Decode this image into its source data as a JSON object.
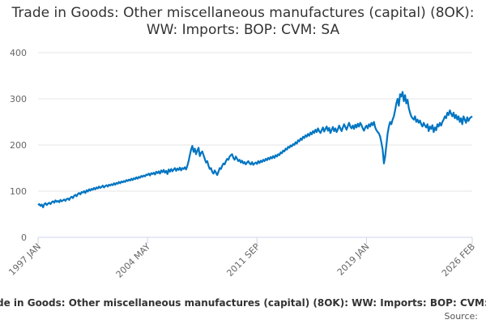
{
  "chart_data": {
    "type": "line",
    "title": "Trade in Goods: Other miscellaneous manufactures (capital) (8OK): WW: Imports: BOP: CVM: SA",
    "source": "Source:",
    "categories": [
      "1997 JAN",
      null,
      null,
      null,
      null,
      null,
      null,
      null,
      null,
      null,
      null,
      null,
      null,
      null,
      null,
      null,
      null,
      null,
      null,
      null,
      null,
      null,
      null,
      null,
      null,
      null,
      null,
      null,
      null,
      null,
      null,
      null,
      null,
      null,
      null,
      null,
      null,
      null,
      null,
      null,
      null,
      null,
      null,
      null,
      null,
      null,
      null,
      null,
      null,
      null,
      null,
      null,
      null,
      null,
      null,
      null,
      null,
      null,
      null,
      null,
      null,
      null,
      null,
      null,
      null,
      null,
      null,
      null,
      null,
      null,
      null,
      null,
      null,
      null,
      null,
      null,
      null,
      null,
      null,
      null,
      null,
      null,
      null,
      null,
      null,
      null,
      null,
      null,
      "2004 MAY",
      null,
      null,
      null,
      null,
      null,
      null,
      null,
      null,
      null,
      null,
      null,
      null,
      null,
      null,
      null,
      null,
      null,
      null,
      null,
      null,
      null,
      null,
      null,
      null,
      null,
      null,
      null,
      null,
      null,
      null,
      null,
      null,
      null,
      null,
      null,
      null,
      null,
      null,
      null,
      null,
      null,
      null,
      null,
      null,
      null,
      null,
      null,
      null,
      null,
      null,
      null,
      null,
      null,
      null,
      null,
      null,
      null,
      null,
      null,
      null,
      null,
      null,
      null,
      null,
      null,
      null,
      null,
      null,
      null,
      null,
      null,
      null,
      null,
      null,
      null,
      null,
      null,
      null,
      null,
      null,
      null,
      null,
      null,
      null,
      null,
      null,
      null,
      "2011 SEP",
      null,
      null,
      null,
      null,
      null,
      null,
      null,
      null,
      null,
      null,
      null,
      null,
      null,
      null,
      null,
      null,
      null,
      null,
      null,
      null,
      null,
      null,
      null,
      null,
      null,
      null,
      null,
      null,
      null,
      null,
      null,
      null,
      null,
      null,
      null,
      null,
      null,
      null,
      null,
      null,
      null,
      null,
      null,
      null,
      null,
      null,
      null,
      null,
      null,
      null,
      null,
      null,
      null,
      null,
      null,
      null,
      null,
      null,
      null,
      null,
      null,
      null,
      null,
      null,
      null,
      null,
      null,
      null,
      null,
      null,
      null,
      null,
      null,
      null,
      null,
      null,
      null,
      null,
      null,
      null,
      null,
      null,
      null,
      null,
      null,
      null,
      null,
      "2019 JAN",
      null,
      null,
      null,
      null,
      null,
      null,
      null,
      null,
      null,
      null,
      null,
      null,
      null,
      null,
      null,
      null,
      null,
      null,
      null,
      null,
      null,
      null,
      null,
      null,
      null,
      null,
      null,
      null,
      null,
      null,
      null,
      null,
      null,
      null,
      null,
      null,
      null,
      null,
      null,
      null,
      null,
      null,
      null,
      null,
      null,
      null,
      null,
      null,
      null,
      null,
      null,
      null,
      null,
      null,
      null,
      null,
      null,
      null,
      null,
      null,
      null,
      null,
      null,
      null,
      null,
      null,
      null,
      null,
      null,
      null,
      null,
      null,
      null,
      null,
      null,
      null,
      null,
      null,
      null,
      null,
      null,
      null,
      null,
      null,
      "2026 FEB"
    ],
    "series": [
      {
        "name": "Trade in Goods: Other miscellaneous manufactures (capital) (8OK): WW: Imports: BOP: CVM: SA",
        "color": "#0075c2",
        "values": [
          70,
          72,
          68,
          71,
          65,
          72,
          74,
          70,
          73,
          75,
          72,
          76,
          78,
          75,
          80,
          77,
          79,
          76,
          81,
          78,
          80,
          82,
          79,
          83,
          84,
          81,
          86,
          88,
          85,
          90,
          92,
          89,
          94,
          96,
          93,
          98,
          97,
          100,
          96,
          102,
          99,
          104,
          101,
          105,
          103,
          107,
          104,
          108,
          106,
          110,
          107,
          109,
          112,
          108,
          111,
          113,
          110,
          114,
          112,
          115,
          113,
          117,
          114,
          118,
          116,
          120,
          117,
          121,
          119,
          122,
          120,
          124,
          122,
          125,
          123,
          127,
          124,
          128,
          126,
          130,
          127,
          131,
          129,
          133,
          131,
          134,
          132,
          136,
          135,
          138,
          134,
          139,
          137,
          140,
          136,
          142,
          139,
          143,
          138,
          145,
          141,
          146,
          140,
          144,
          137,
          147,
          142,
          148,
          143,
          147,
          150,
          144,
          149,
          146,
          151,
          145,
          150,
          148,
          152,
          147,
          155,
          165,
          178,
          190,
          198,
          185,
          192,
          180,
          188,
          194,
          176,
          183,
          186,
          178,
          170,
          162,
          165,
          155,
          148,
          150,
          142,
          138,
          145,
          140,
          135,
          142,
          150,
          148,
          155,
          160,
          158,
          165,
          170,
          168,
          175,
          178,
          180,
          172,
          168,
          175,
          170,
          165,
          168,
          162,
          166,
          160,
          163,
          158,
          162,
          165,
          160,
          158,
          163,
          157,
          160,
          162,
          159,
          165,
          161,
          166,
          163,
          168,
          165,
          170,
          167,
          172,
          169,
          174,
          171,
          176,
          172,
          178,
          175,
          180,
          178,
          184,
          182,
          188,
          186,
          192,
          190,
          196,
          194,
          199,
          197,
          202,
          200,
          206,
          203,
          210,
          208,
          214,
          211,
          218,
          215,
          221,
          218,
          224,
          220,
          227,
          223,
          230,
          226,
          233,
          228,
          236,
          230,
          226,
          232,
          238,
          229,
          235,
          240,
          231,
          237,
          226,
          233,
          239,
          230,
          236,
          228,
          234,
          242,
          236,
          230,
          238,
          245,
          239,
          233,
          241,
          248,
          240,
          236,
          242,
          235,
          244,
          238,
          246,
          240,
          248,
          243,
          236,
          231,
          238,
          242,
          236,
          245,
          240,
          248,
          243,
          250,
          238,
          232,
          228,
          225,
          218,
          205,
          190,
          160,
          175,
          200,
          225,
          240,
          250,
          245,
          255,
          262,
          275,
          290,
          300,
          285,
          310,
          305,
          315,
          295,
          308,
          290,
          298,
          280,
          270,
          262,
          258,
          255,
          262,
          250,
          255,
          248,
          253,
          245,
          240,
          248,
          242,
          238,
          245,
          230,
          240,
          235,
          243,
          228,
          238,
          232,
          245,
          240,
          248,
          242,
          250,
          255,
          262,
          258,
          270,
          265,
          275,
          268,
          262,
          270,
          258,
          265,
          255,
          262,
          250,
          258,
          245,
          262,
          255,
          248,
          260,
          252,
          258,
          260,
          262
        ]
      }
    ],
    "ylim": [
      0,
      400
    ],
    "yticks": [
      0,
      100,
      200,
      300,
      400
    ],
    "grid": true
  }
}
